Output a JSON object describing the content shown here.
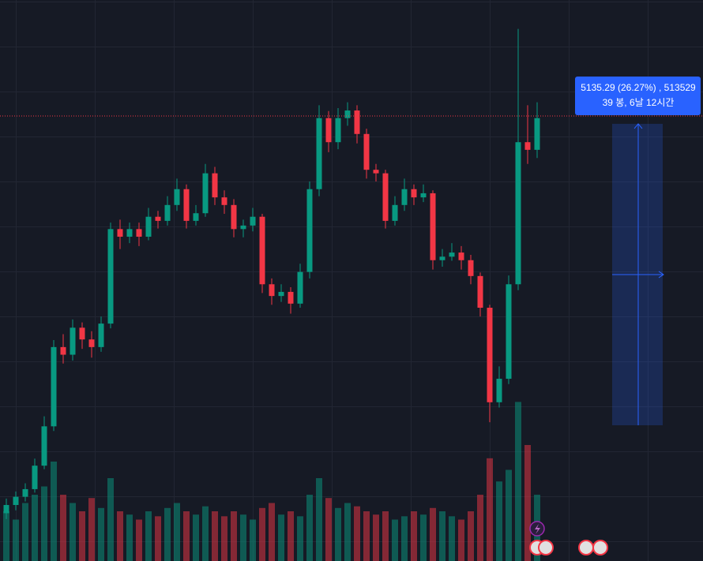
{
  "chart_data": {
    "type": "candlestick",
    "up_color": "#089981",
    "down_color": "#f23645",
    "ylim": [
      17236,
      26792
    ],
    "open": [
      18050,
      18190,
      18330,
      18460,
      18860,
      19530,
      20880,
      20750,
      21210,
      21010,
      20880,
      21280,
      22890,
      22760,
      22890,
      22760,
      23100,
      23030,
      23300,
      23570,
      23030,
      23160,
      23840,
      23430,
      23300,
      22890,
      22950,
      23100,
      21950,
      21750,
      21820,
      21620,
      22160,
      23570,
      24780,
      24370,
      24780,
      24910,
      24510,
      23900,
      23840,
      23030,
      23300,
      23570,
      23430,
      23500,
      22360,
      22420,
      22490,
      22360,
      22090,
      21550,
      19940,
      20340,
      21950,
      24370,
      24240
    ],
    "high": [
      18300,
      18420,
      18560,
      18980,
      19700,
      21000,
      21100,
      21350,
      21300,
      21150,
      21400,
      23000,
      23050,
      23000,
      23000,
      23250,
      23200,
      23450,
      23750,
      23650,
      23300,
      24000,
      23950,
      23550,
      23400,
      23050,
      23250,
      23150,
      22050,
      21950,
      21900,
      22300,
      23700,
      25000,
      24900,
      24950,
      25050,
      25000,
      24600,
      24000,
      23900,
      23450,
      23750,
      23650,
      23650,
      23550,
      22550,
      22650,
      22600,
      22450,
      22150,
      21600,
      20550,
      22100,
      26300,
      25000,
      25050
    ],
    "low": [
      17950,
      18100,
      18250,
      18400,
      18800,
      19450,
      20600,
      20650,
      20850,
      20700,
      20800,
      21200,
      22550,
      22650,
      22600,
      22700,
      22900,
      22950,
      23200,
      22900,
      22950,
      23100,
      23300,
      23150,
      22750,
      22750,
      22850,
      21800,
      21600,
      21650,
      21450,
      21550,
      22050,
      23450,
      24200,
      24250,
      24650,
      24350,
      23750,
      23700,
      22900,
      22950,
      23200,
      23300,
      23350,
      22200,
      22250,
      22350,
      22200,
      21950,
      21400,
      19600,
      19850,
      20250,
      21850,
      24000,
      24100
    ],
    "close": [
      18190,
      18330,
      18460,
      18860,
      19530,
      20880,
      20750,
      21210,
      21010,
      20880,
      21280,
      22890,
      22760,
      22890,
      22760,
      23100,
      23030,
      23300,
      23570,
      23030,
      23160,
      23840,
      23430,
      23300,
      22890,
      22950,
      23100,
      21950,
      21750,
      21820,
      21620,
      22160,
      23570,
      24780,
      24370,
      24780,
      24910,
      24510,
      23900,
      23840,
      23030,
      23300,
      23570,
      23430,
      23500,
      22360,
      22420,
      22490,
      22360,
      22090,
      21550,
      19940,
      20340,
      21950,
      24370,
      24240,
      24780
    ],
    "volume_lim": [
      0,
      100
    ],
    "volume": [
      30,
      25,
      35,
      40,
      45,
      60,
      40,
      35,
      30,
      38,
      32,
      50,
      30,
      28,
      25,
      30,
      27,
      32,
      35,
      30,
      28,
      33,
      30,
      27,
      30,
      28,
      25,
      32,
      35,
      28,
      30,
      27,
      40,
      50,
      38,
      32,
      35,
      33,
      30,
      28,
      30,
      25,
      27,
      30,
      28,
      32,
      30,
      27,
      25,
      30,
      40,
      62,
      48,
      55,
      96,
      70,
      40
    ],
    "last_price": 24816,
    "last_price_color": "#f23645",
    "measure": {
      "from": 19548,
      "to": 24683,
      "color": "#2962ff",
      "label": "5135.29 (26.27%) , 513529",
      "sublabel": "39 봉, 6날 12시간"
    }
  }
}
